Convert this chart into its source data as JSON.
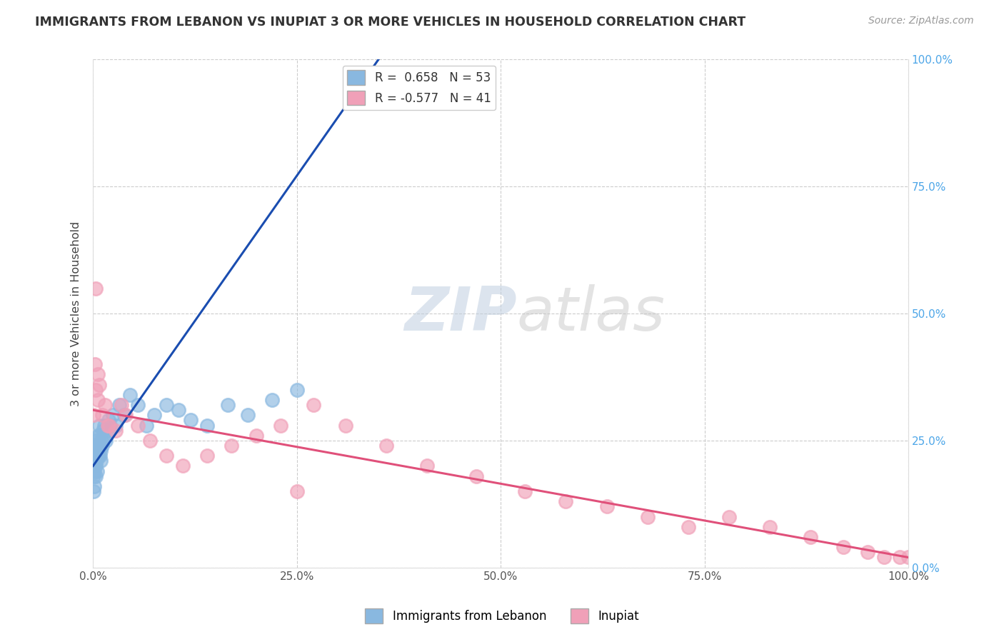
{
  "title": "IMMIGRANTS FROM LEBANON VS INUPIAT 3 OR MORE VEHICLES IN HOUSEHOLD CORRELATION CHART",
  "source_text": "Source: ZipAtlas.com",
  "ylabel": "3 or more Vehicles in Household",
  "legend_label_blue": "Immigrants from Lebanon",
  "legend_label_pink": "Inupiat",
  "R_blue": 0.658,
  "N_blue": 53,
  "R_pink": -0.577,
  "N_pink": 41,
  "blue_color": "#89b8e0",
  "pink_color": "#f0a0b8",
  "trend_blue": "#1a4db0",
  "trend_pink": "#e0507a",
  "xlim": [
    0,
    100
  ],
  "ylim": [
    0,
    100
  ],
  "xtick_vals": [
    0,
    25,
    50,
    75,
    100
  ],
  "ytick_vals": [
    0,
    25,
    50,
    75,
    100
  ],
  "xtick_labels": [
    "0.0%",
    "25.0%",
    "50.0%",
    "75.0%",
    "100.0%"
  ],
  "ytick_labels": [
    "0.0%",
    "25.0%",
    "50.0%",
    "75.0%",
    "100.0%"
  ],
  "blue_x": [
    0.05,
    0.08,
    0.1,
    0.12,
    0.14,
    0.16,
    0.18,
    0.2,
    0.22,
    0.25,
    0.28,
    0.3,
    0.33,
    0.36,
    0.4,
    0.44,
    0.48,
    0.52,
    0.56,
    0.6,
    0.64,
    0.68,
    0.72,
    0.76,
    0.8,
    0.85,
    0.9,
    0.95,
    1.0,
    1.1,
    1.2,
    1.3,
    1.4,
    1.55,
    1.7,
    1.9,
    2.1,
    2.4,
    2.8,
    3.2,
    3.8,
    4.5,
    5.5,
    6.5,
    7.5,
    9.0,
    10.5,
    12.0,
    14.0,
    16.5,
    19.0,
    22.0,
    25.0
  ],
  "blue_y": [
    20,
    18,
    15,
    22,
    19,
    16,
    24,
    21,
    23,
    20,
    18,
    22,
    25,
    20,
    23,
    21,
    19,
    24,
    22,
    26,
    24,
    22,
    28,
    26,
    24,
    22,
    21,
    23,
    25,
    24,
    27,
    26,
    28,
    25,
    27,
    29,
    28,
    30,
    28,
    32,
    30,
    34,
    32,
    28,
    30,
    32,
    31,
    29,
    28,
    32,
    30,
    33,
    35
  ],
  "pink_x": [
    0.1,
    0.2,
    0.35,
    0.55,
    0.8,
    1.1,
    1.5,
    2.0,
    2.8,
    4.0,
    5.5,
    7.0,
    9.0,
    11.0,
    14.0,
    17.0,
    20.0,
    23.0,
    27.0,
    31.0,
    36.0,
    41.0,
    47.0,
    53.0,
    58.0,
    63.0,
    68.0,
    73.0,
    78.0,
    83.0,
    88.0,
    92.0,
    95.0,
    97.0,
    99.0,
    100.0,
    0.3,
    0.6,
    1.8,
    3.5,
    25.0
  ],
  "pink_y": [
    30,
    40,
    35,
    33,
    36,
    30,
    32,
    28,
    27,
    30,
    28,
    25,
    22,
    20,
    22,
    24,
    26,
    28,
    32,
    28,
    24,
    20,
    18,
    15,
    13,
    12,
    10,
    8,
    10,
    8,
    6,
    4,
    3,
    2,
    2,
    2,
    55,
    38,
    28,
    32,
    15
  ],
  "blue_trend_x": [
    0,
    35
  ],
  "blue_trend_y": [
    20,
    100
  ],
  "pink_trend_x": [
    0,
    100
  ],
  "pink_trend_y": [
    31,
    2
  ]
}
